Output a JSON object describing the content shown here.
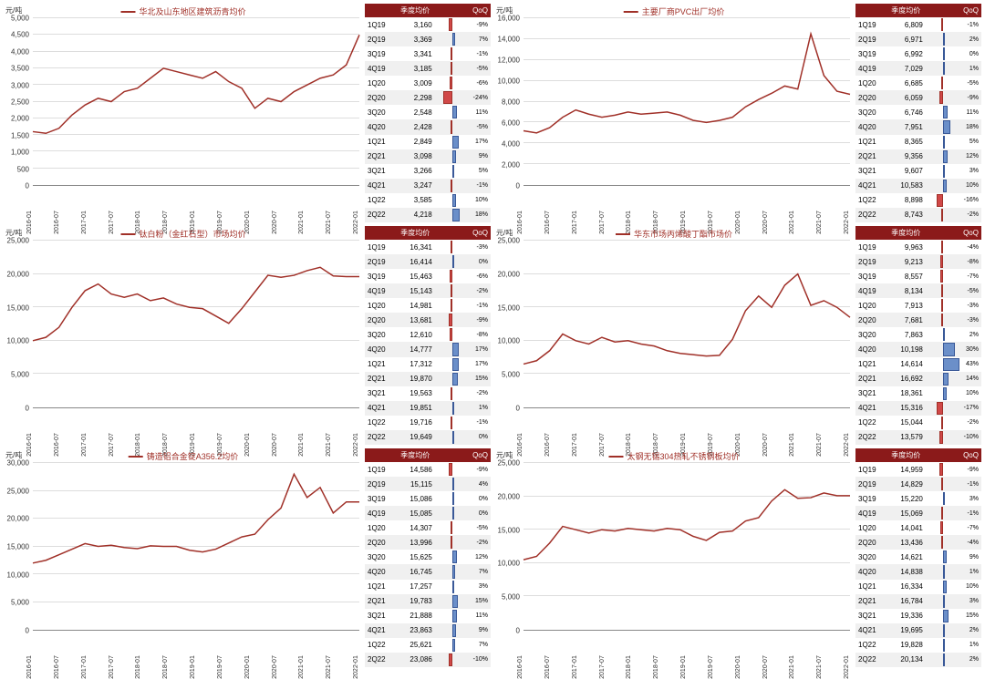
{
  "colors": {
    "line": "#a03028",
    "header_bg": "#8b1a1a",
    "pos": "#6b8fc9",
    "neg": "#d04848",
    "grid": "#ddd"
  },
  "x_labels": [
    "2016-01",
    "2016-07",
    "2017-01",
    "2017-07",
    "2018-01",
    "2018-07",
    "2019-01",
    "2019-07",
    "2020-01",
    "2020-07",
    "2021-01",
    "2021-07",
    "2022-01"
  ],
  "table_headers": [
    "",
    "季度均价",
    "",
    "QoQ"
  ],
  "panels": [
    {
      "ylabel": "元/吨",
      "legend": "华北及山东地区建筑沥青均价",
      "ymin": 0,
      "ymax": 5000,
      "ystep": 500,
      "series": [
        1600,
        1550,
        1700,
        2100,
        2400,
        2600,
        2500,
        2800,
        2900,
        3200,
        3500,
        3400,
        3300,
        3200,
        3400,
        3100,
        2900,
        2300,
        2600,
        2500,
        2800,
        3000,
        3200,
        3300,
        3600,
        4500
      ],
      "rows": [
        [
          "1Q19",
          3160,
          -9
        ],
        [
          "2Q19",
          3369,
          7
        ],
        [
          "3Q19",
          3341,
          -1
        ],
        [
          "4Q19",
          3185,
          -5
        ],
        [
          "1Q20",
          3009,
          -6
        ],
        [
          "2Q20",
          2298,
          -24
        ],
        [
          "3Q20",
          2548,
          11
        ],
        [
          "4Q20",
          2428,
          -5
        ],
        [
          "1Q21",
          2849,
          17
        ],
        [
          "2Q21",
          3098,
          9
        ],
        [
          "3Q21",
          3266,
          5
        ],
        [
          "4Q21",
          3247,
          -1
        ],
        [
          "1Q22",
          3585,
          10
        ],
        [
          "2Q22",
          4218,
          18
        ]
      ]
    },
    {
      "ylabel": "元/吨",
      "legend": "主要厂商PVC出厂均价",
      "ymin": 0,
      "ymax": 16000,
      "ystep": 2000,
      "series": [
        5200,
        5000,
        5500,
        6500,
        7200,
        6800,
        6500,
        6700,
        7000,
        6800,
        6900,
        7000,
        6700,
        6200,
        6000,
        6200,
        6500,
        7500,
        8200,
        8800,
        9500,
        9200,
        14500,
        10500,
        9000,
        8700
      ],
      "rows": [
        [
          "1Q19",
          6809,
          -1
        ],
        [
          "2Q19",
          6971,
          2
        ],
        [
          "3Q19",
          6992,
          0
        ],
        [
          "4Q19",
          7029,
          1
        ],
        [
          "1Q20",
          6685,
          -5
        ],
        [
          "2Q20",
          6059,
          -9
        ],
        [
          "3Q20",
          6746,
          11
        ],
        [
          "4Q20",
          7951,
          18
        ],
        [
          "1Q21",
          8365,
          5
        ],
        [
          "2Q21",
          9356,
          12
        ],
        [
          "3Q21",
          9607,
          3
        ],
        [
          "4Q21",
          10583,
          10
        ],
        [
          "1Q22",
          8898,
          -16
        ],
        [
          "2Q22",
          8743,
          -2
        ]
      ]
    },
    {
      "ylabel": "元/吨",
      "legend": "钛白粉（金红石型）市场均价",
      "ymin": 0,
      "ymax": 25000,
      "ystep": 5000,
      "series": [
        10000,
        10500,
        12000,
        15000,
        17500,
        18500,
        17000,
        16500,
        17000,
        16000,
        16400,
        15500,
        15000,
        14800,
        13700,
        12600,
        14800,
        17300,
        19800,
        19500,
        19800,
        20500,
        21000,
        19700,
        19600,
        19600
      ],
      "rows": [
        [
          "1Q19",
          16341,
          -3
        ],
        [
          "2Q19",
          16414,
          0
        ],
        [
          "3Q19",
          15463,
          -6
        ],
        [
          "4Q19",
          15143,
          -2
        ],
        [
          "1Q20",
          14981,
          -1
        ],
        [
          "2Q20",
          13681,
          -9
        ],
        [
          "3Q20",
          12610,
          -8
        ],
        [
          "4Q20",
          14777,
          17
        ],
        [
          "1Q21",
          17312,
          17
        ],
        [
          "2Q21",
          19870,
          15
        ],
        [
          "3Q21",
          19563,
          -2
        ],
        [
          "4Q21",
          19851,
          1
        ],
        [
          "1Q22",
          19716,
          -1
        ],
        [
          "2Q22",
          19649,
          0
        ]
      ]
    },
    {
      "ylabel": "元/吨",
      "legend": "华东市场丙烯酸丁酯市场价",
      "ymin": 0,
      "ymax": 25000,
      "ystep": 5000,
      "series": [
        6500,
        7000,
        8500,
        11000,
        10000,
        9500,
        10500,
        9800,
        10000,
        9500,
        9200,
        8500,
        8100,
        7900,
        7700,
        7800,
        10200,
        14500,
        16700,
        15000,
        18300,
        20000,
        15300,
        16000,
        15000,
        13500
      ],
      "rows": [
        [
          "1Q19",
          9963,
          -4
        ],
        [
          "2Q19",
          9213,
          -8
        ],
        [
          "3Q19",
          8557,
          -7
        ],
        [
          "4Q19",
          8134,
          -5
        ],
        [
          "1Q20",
          7913,
          -3
        ],
        [
          "2Q20",
          7681,
          -3
        ],
        [
          "3Q20",
          7863,
          2
        ],
        [
          "4Q20",
          10198,
          30
        ],
        [
          "1Q21",
          14614,
          43
        ],
        [
          "2Q21",
          16692,
          14
        ],
        [
          "3Q21",
          18361,
          10
        ],
        [
          "4Q21",
          15316,
          -17
        ],
        [
          "1Q22",
          15044,
          -2
        ],
        [
          "2Q22",
          13579,
          -10
        ]
      ]
    },
    {
      "ylabel": "元/吨",
      "legend": "铸造铝合金锭A356.2均价",
      "ymin": 0,
      "ymax": 30000,
      "ystep": 5000,
      "series": [
        12000,
        12500,
        13500,
        14500,
        15500,
        15000,
        15200,
        14800,
        14600,
        15100,
        15000,
        15000,
        14300,
        14000,
        14500,
        15600,
        16700,
        17200,
        19800,
        21900,
        28000,
        23800,
        25600,
        21000,
        23000,
        23000
      ],
      "rows": [
        [
          "1Q19",
          14586,
          -9
        ],
        [
          "2Q19",
          15115,
          4
        ],
        [
          "3Q19",
          15086,
          0
        ],
        [
          "4Q19",
          15085,
          0
        ],
        [
          "1Q20",
          14307,
          -5
        ],
        [
          "2Q20",
          13996,
          -2
        ],
        [
          "3Q20",
          15625,
          12
        ],
        [
          "4Q20",
          16745,
          7
        ],
        [
          "1Q21",
          17257,
          3
        ],
        [
          "2Q21",
          19783,
          15
        ],
        [
          "3Q21",
          21888,
          11
        ],
        [
          "4Q21",
          23863,
          9
        ],
        [
          "1Q22",
          25621,
          7
        ],
        [
          "2Q22",
          23086,
          -10
        ]
      ]
    },
    {
      "ylabel": "元/吨",
      "legend": "太钢无锡304热轧不锈钢板均价",
      "ymin": 0,
      "ymax": 25000,
      "ystep": 5000,
      "series": [
        10500,
        11000,
        13000,
        15500,
        15000,
        14500,
        15000,
        14800,
        15200,
        15000,
        14800,
        15200,
        15000,
        14000,
        13400,
        14600,
        14800,
        16300,
        16800,
        19300,
        21000,
        19700,
        19800,
        20500,
        20100,
        20100
      ],
      "rows": [
        [
          "1Q19",
          14959,
          -9
        ],
        [
          "2Q19",
          14829,
          -1
        ],
        [
          "3Q19",
          15220,
          3
        ],
        [
          "4Q19",
          15069,
          -1
        ],
        [
          "1Q20",
          14041,
          -7
        ],
        [
          "2Q20",
          13436,
          -4
        ],
        [
          "3Q20",
          14621,
          9
        ],
        [
          "4Q20",
          14838,
          1
        ],
        [
          "1Q21",
          16334,
          10
        ],
        [
          "2Q21",
          16784,
          3
        ],
        [
          "3Q21",
          19336,
          15
        ],
        [
          "4Q21",
          19695,
          2
        ],
        [
          "1Q22",
          19828,
          1
        ],
        [
          "2Q22",
          20134,
          2
        ]
      ]
    }
  ]
}
